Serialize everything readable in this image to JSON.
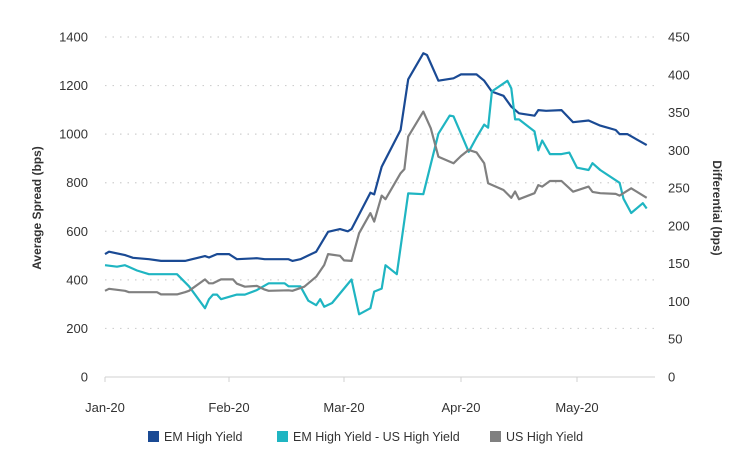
{
  "chart_data": {
    "type": "line",
    "title": "",
    "xlabel": "",
    "ylabel": "Average Spread (bps)",
    "y2label": "Differential (bps)",
    "ylim": [
      0,
      1400
    ],
    "y2lim": [
      0,
      450
    ],
    "yticks": [
      0,
      200,
      400,
      600,
      800,
      1000,
      1200,
      1400
    ],
    "y2ticks": [
      0,
      50,
      100,
      150,
      200,
      250,
      300,
      350,
      400,
      450
    ],
    "xticks": [
      {
        "date": "2020-01-01",
        "label": "Jan-20"
      },
      {
        "date": "2020-02-01",
        "label": "Feb-20"
      },
      {
        "date": "2020-03-01",
        "label": "Mar-20"
      },
      {
        "date": "2020-04-01",
        "label": "Apr-20"
      },
      {
        "date": "2020-05-01",
        "label": "May-20"
      }
    ],
    "grid": "horizontal dotted",
    "legend_position": "bottom",
    "series": [
      {
        "name": "EM High Yield",
        "axis": "left",
        "color": "#1a4a94",
        "points": [
          [
            "2020-01-01",
            506
          ],
          [
            "2020-01-02",
            516
          ],
          [
            "2020-01-06",
            502
          ],
          [
            "2020-01-08",
            491
          ],
          [
            "2020-01-12",
            485
          ],
          [
            "2020-01-15",
            478
          ],
          [
            "2020-01-21",
            478
          ],
          [
            "2020-01-26",
            498
          ],
          [
            "2020-01-27",
            492
          ],
          [
            "2020-01-29",
            506
          ],
          [
            "2020-02-01",
            506
          ],
          [
            "2020-02-03",
            485
          ],
          [
            "2020-02-08",
            489
          ],
          [
            "2020-02-10",
            485
          ],
          [
            "2020-02-16",
            485
          ],
          [
            "2020-02-17",
            478
          ],
          [
            "2020-02-19",
            485
          ],
          [
            "2020-02-23",
            516
          ],
          [
            "2020-02-26",
            598
          ],
          [
            "2020-02-29",
            609
          ],
          [
            "2020-03-02",
            600
          ],
          [
            "2020-03-03",
            609
          ],
          [
            "2020-03-08",
            759
          ],
          [
            "2020-03-09",
            752
          ],
          [
            "2020-03-11",
            866
          ],
          [
            "2020-03-16",
            1017
          ],
          [
            "2020-03-18",
            1226
          ],
          [
            "2020-03-22",
            1333
          ],
          [
            "2020-03-23",
            1326
          ],
          [
            "2020-03-26",
            1220
          ],
          [
            "2020-03-30",
            1230
          ],
          [
            "2020-04-01",
            1246
          ],
          [
            "2020-04-05",
            1246
          ],
          [
            "2020-04-07",
            1220
          ],
          [
            "2020-04-09",
            1175
          ],
          [
            "2020-04-12",
            1158
          ],
          [
            "2020-04-14",
            1113
          ],
          [
            "2020-04-16",
            1086
          ],
          [
            "2020-04-20",
            1076
          ],
          [
            "2020-04-21",
            1099
          ],
          [
            "2020-04-23",
            1096
          ],
          [
            "2020-04-27",
            1099
          ],
          [
            "2020-04-30",
            1049
          ],
          [
            "2020-05-04",
            1056
          ],
          [
            "2020-05-07",
            1035
          ],
          [
            "2020-05-11",
            1017
          ],
          [
            "2020-05-12",
            1000
          ],
          [
            "2020-05-14",
            1000
          ],
          [
            "2020-05-19",
            955
          ]
        ]
      },
      {
        "name": "EM High Yield - US High Yield",
        "axis": "right",
        "color": "#1fb5c2",
        "points": [
          [
            "2020-01-01",
            148
          ],
          [
            "2020-01-04",
            146
          ],
          [
            "2020-01-06",
            148
          ],
          [
            "2020-01-09",
            141
          ],
          [
            "2020-01-12",
            136
          ],
          [
            "2020-01-19",
            136
          ],
          [
            "2020-01-22",
            120
          ],
          [
            "2020-01-26",
            91
          ],
          [
            "2020-01-27",
            103
          ],
          [
            "2020-01-28",
            109
          ],
          [
            "2020-01-29",
            109
          ],
          [
            "2020-01-30",
            103
          ],
          [
            "2020-02-03",
            109
          ],
          [
            "2020-02-05",
            109
          ],
          [
            "2020-02-08",
            115
          ],
          [
            "2020-02-11",
            124
          ],
          [
            "2020-02-15",
            124
          ],
          [
            "2020-02-16",
            120
          ],
          [
            "2020-02-19",
            120
          ],
          [
            "2020-02-21",
            101
          ],
          [
            "2020-02-23",
            95
          ],
          [
            "2020-02-24",
            103
          ],
          [
            "2020-02-25",
            93
          ],
          [
            "2020-02-27",
            98
          ],
          [
            "2020-03-03",
            129
          ],
          [
            "2020-03-05",
            83
          ],
          [
            "2020-03-08",
            91
          ],
          [
            "2020-03-09",
            113
          ],
          [
            "2020-03-11",
            117
          ],
          [
            "2020-03-12",
            148
          ],
          [
            "2020-03-15",
            136
          ],
          [
            "2020-03-18",
            243
          ],
          [
            "2020-03-22",
            242
          ],
          [
            "2020-03-26",
            322
          ],
          [
            "2020-03-29",
            346
          ],
          [
            "2020-03-30",
            345
          ],
          [
            "2020-04-01",
            322
          ],
          [
            "2020-04-03",
            298
          ],
          [
            "2020-04-05",
            317
          ],
          [
            "2020-04-07",
            334
          ],
          [
            "2020-04-08",
            330
          ],
          [
            "2020-04-09",
            378
          ],
          [
            "2020-04-13",
            392
          ],
          [
            "2020-04-14",
            382
          ],
          [
            "2020-04-15",
            341
          ],
          [
            "2020-04-16",
            341
          ],
          [
            "2020-04-20",
            325
          ],
          [
            "2020-04-21",
            300
          ],
          [
            "2020-04-22",
            313
          ],
          [
            "2020-04-24",
            295
          ],
          [
            "2020-04-27",
            295
          ],
          [
            "2020-04-29",
            297
          ],
          [
            "2020-05-01",
            277
          ],
          [
            "2020-05-04",
            274
          ],
          [
            "2020-05-05",
            283
          ],
          [
            "2020-05-07",
            274
          ],
          [
            "2020-05-12",
            257
          ],
          [
            "2020-05-13",
            236
          ],
          [
            "2020-05-15",
            217
          ],
          [
            "2020-05-18",
            230
          ],
          [
            "2020-05-19",
            223
          ]
        ]
      },
      {
        "name": "US High Yield",
        "axis": "left",
        "color": "#808080",
        "points": [
          [
            "2020-01-01",
            355
          ],
          [
            "2020-01-02",
            363
          ],
          [
            "2020-01-06",
            355
          ],
          [
            "2020-01-07",
            349
          ],
          [
            "2020-01-14",
            349
          ],
          [
            "2020-01-15",
            340
          ],
          [
            "2020-01-19",
            340
          ],
          [
            "2020-01-21",
            349
          ],
          [
            "2020-01-22",
            355
          ],
          [
            "2020-01-26",
            402
          ],
          [
            "2020-01-27",
            386
          ],
          [
            "2020-01-28",
            386
          ],
          [
            "2020-01-30",
            402
          ],
          [
            "2020-02-02",
            402
          ],
          [
            "2020-02-03",
            384
          ],
          [
            "2020-02-05",
            372
          ],
          [
            "2020-02-08",
            375
          ],
          [
            "2020-02-10",
            360
          ],
          [
            "2020-02-11",
            355
          ],
          [
            "2020-02-16",
            357
          ],
          [
            "2020-02-17",
            355
          ],
          [
            "2020-02-20",
            372
          ],
          [
            "2020-02-23",
            413
          ],
          [
            "2020-02-25",
            461
          ],
          [
            "2020-02-26",
            506
          ],
          [
            "2020-02-29",
            499
          ],
          [
            "2020-03-01",
            480
          ],
          [
            "2020-03-03",
            478
          ],
          [
            "2020-03-05",
            592
          ],
          [
            "2020-03-08",
            675
          ],
          [
            "2020-03-09",
            640
          ],
          [
            "2020-03-11",
            747
          ],
          [
            "2020-03-12",
            732
          ],
          [
            "2020-03-16",
            839
          ],
          [
            "2020-03-17",
            856
          ],
          [
            "2020-03-18",
            990
          ],
          [
            "2020-03-22",
            1093
          ],
          [
            "2020-03-24",
            1024
          ],
          [
            "2020-03-26",
            907
          ],
          [
            "2020-03-30",
            880
          ],
          [
            "2020-04-01",
            910
          ],
          [
            "2020-04-03",
            935
          ],
          [
            "2020-04-05",
            925
          ],
          [
            "2020-04-07",
            880
          ],
          [
            "2020-04-08",
            798
          ],
          [
            "2020-04-12",
            770
          ],
          [
            "2020-04-14",
            738
          ],
          [
            "2020-04-15",
            764
          ],
          [
            "2020-04-16",
            732
          ],
          [
            "2020-04-20",
            757
          ],
          [
            "2020-04-21",
            790
          ],
          [
            "2020-04-22",
            784
          ],
          [
            "2020-04-24",
            807
          ],
          [
            "2020-04-27",
            807
          ],
          [
            "2020-04-30",
            763
          ],
          [
            "2020-05-04",
            784
          ],
          [
            "2020-05-05",
            762
          ],
          [
            "2020-05-07",
            757
          ],
          [
            "2020-05-11",
            754
          ],
          [
            "2020-05-12",
            747
          ],
          [
            "2020-05-15",
            777
          ],
          [
            "2020-05-19",
            738
          ]
        ]
      }
    ]
  }
}
